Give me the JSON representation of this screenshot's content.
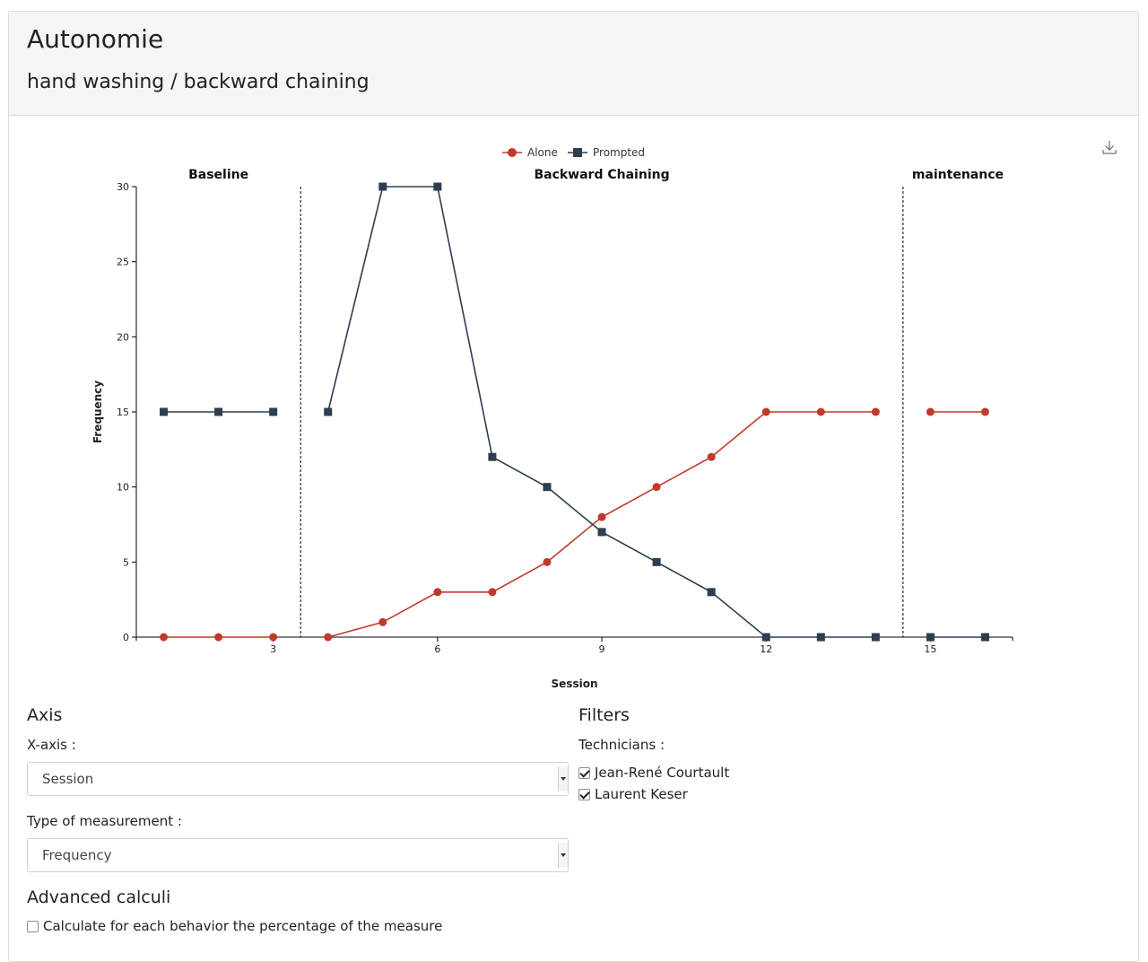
{
  "app_title": "Autonomie",
  "page_subtitle": "hand washing / backward chaining",
  "chart_data": {
    "type": "line",
    "xlabel": "Session",
    "ylabel": "Frequency",
    "xlim": [
      0.5,
      16.5
    ],
    "ylim": [
      0,
      30
    ],
    "x_ticks": [
      3,
      6,
      9,
      12,
      15
    ],
    "y_ticks": [
      0,
      5,
      10,
      15,
      20,
      25,
      30
    ],
    "legend_position": "top-center",
    "grid": false,
    "phases": [
      {
        "label": "Baseline",
        "sessions": [
          1,
          2,
          3
        ]
      },
      {
        "label": "Backward Chaining",
        "sessions": [
          4,
          5,
          6,
          7,
          8,
          9,
          10,
          11,
          12,
          13,
          14
        ]
      },
      {
        "label": "maintenance",
        "sessions": [
          15,
          16
        ]
      }
    ],
    "phase_dividers": [
      3.5,
      14.5
    ],
    "series": [
      {
        "name": "Alone",
        "color": "#c0392b",
        "marker": "circle",
        "segments": [
          {
            "x": [
              1,
              2,
              3
            ],
            "y": [
              0,
              0,
              0
            ]
          },
          {
            "x": [
              4,
              5,
              6,
              7,
              8,
              9,
              10,
              11,
              12,
              13,
              14
            ],
            "y": [
              0,
              1,
              3,
              3,
              5,
              8,
              10,
              12,
              15,
              15,
              15
            ]
          },
          {
            "x": [
              15,
              16
            ],
            "y": [
              15,
              15
            ]
          }
        ]
      },
      {
        "name": "Prompted",
        "color": "#2c3e50",
        "marker": "square",
        "segments": [
          {
            "x": [
              1,
              2,
              3
            ],
            "y": [
              15,
              15,
              15
            ]
          },
          {
            "x": [
              4,
              5,
              6,
              7,
              8,
              9,
              10,
              11,
              12,
              13,
              14
            ],
            "y": [
              15,
              30,
              30,
              12,
              10,
              7,
              5,
              3,
              0,
              0,
              0
            ]
          },
          {
            "x": [
              15,
              16
            ],
            "y": [
              0,
              0
            ]
          }
        ]
      }
    ]
  },
  "axis_section": {
    "title": "Axis",
    "x_axis_label": "X-axis :",
    "x_axis_value": "Session",
    "measurement_label": "Type of measurement :",
    "measurement_value": "Frequency"
  },
  "filters_section": {
    "title": "Filters",
    "technicians_label": "Technicians :",
    "technicians": [
      {
        "name": "Jean-René Courtault",
        "checked": true
      },
      {
        "name": "Laurent Keser",
        "checked": true
      }
    ]
  },
  "advanced_section": {
    "title": "Advanced calculi",
    "percentage_option": "Calculate for each behavior the percentage of the measure",
    "percentage_checked": false
  },
  "icons": {
    "download": "download-icon"
  }
}
